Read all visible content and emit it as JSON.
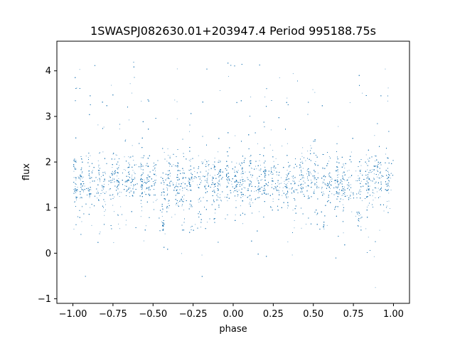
{
  "chart_data": {
    "type": "scatter",
    "title": "1SWASPJ082630.01+203947.4 Period 995188.75s",
    "xlabel": "phase",
    "ylabel": "flux",
    "xlim": [
      -1.1,
      1.1
    ],
    "ylim": [
      -1.1,
      4.65
    ],
    "xticks": [
      -1.0,
      -0.75,
      -0.5,
      -0.25,
      0.0,
      0.25,
      0.5,
      0.75,
      1.0
    ],
    "xtick_labels": [
      "−1.00",
      "−0.75",
      "−0.50",
      "−0.25",
      "0.00",
      "0.25",
      "0.50",
      "0.75",
      "1.00"
    ],
    "yticks": [
      -1,
      0,
      1,
      2,
      3,
      4
    ],
    "ytick_labels": [
      "−1",
      "0",
      "1",
      "2",
      "3",
      "4"
    ],
    "grid": false,
    "point_color": "#1f77b4",
    "series": [
      {
        "description_visible": "dense light-flux scatter, folded light curve repeated over two cycles",
        "phase_range": [
          -1.0,
          1.0
        ],
        "flux_core_range": [
          1.0,
          2.2
        ],
        "flux_min": -0.8,
        "flux_max": 4.4,
        "n_points_approx": 9000
      }
    ]
  }
}
